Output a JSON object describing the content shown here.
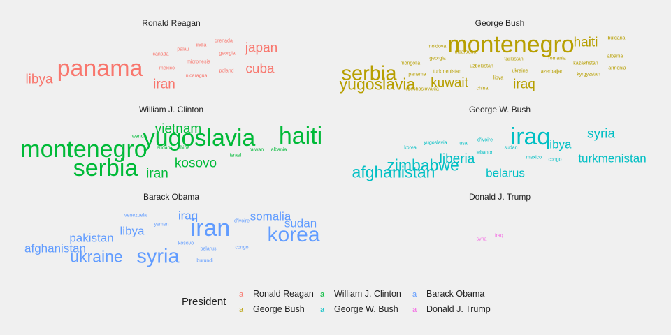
{
  "chart_data": {
    "type": "wordcloud",
    "legend": {
      "title": "President",
      "key_glyph": "a",
      "placement": "bottom",
      "entries": [
        {
          "name": "Ronald Reagan",
          "color": "#f8766d"
        },
        {
          "name": "George Bush",
          "color": "#b79f00"
        },
        {
          "name": "William J. Clinton",
          "color": "#00ba38"
        },
        {
          "name": "George W. Bush",
          "color": "#00bfc4"
        },
        {
          "name": "Barack Obama",
          "color": "#619cff"
        },
        {
          "name": "Donald J. Trump",
          "color": "#f564e3"
        }
      ]
    },
    "panels": [
      {
        "title": "Ronald Reagan",
        "color": "#f8766d",
        "words": [
          {
            "text": "panama",
            "weight": 10
          },
          {
            "text": "libya",
            "weight": 5
          },
          {
            "text": "japan",
            "weight": 5
          },
          {
            "text": "cuba",
            "weight": 5
          },
          {
            "text": "iran",
            "weight": 5
          },
          {
            "text": "grenada",
            "weight": 1
          },
          {
            "text": "india",
            "weight": 1
          },
          {
            "text": "palau",
            "weight": 1
          },
          {
            "text": "canada",
            "weight": 1
          },
          {
            "text": "georgia",
            "weight": 1
          },
          {
            "text": "micronesia",
            "weight": 1
          },
          {
            "text": "mexico",
            "weight": 1
          },
          {
            "text": "poland",
            "weight": 1
          },
          {
            "text": "nicaragua",
            "weight": 1
          }
        ]
      },
      {
        "title": "George Bush",
        "color": "#b79f00",
        "words": [
          {
            "text": "montenegro",
            "weight": 10
          },
          {
            "text": "serbia",
            "weight": 8
          },
          {
            "text": "yugoslavia",
            "weight": 6
          },
          {
            "text": "haiti",
            "weight": 5
          },
          {
            "text": "kuwait",
            "weight": 5
          },
          {
            "text": "iraq",
            "weight": 5
          },
          {
            "text": "bulgaria",
            "weight": 1
          },
          {
            "text": "moldova",
            "weight": 1
          },
          {
            "text": "nicaragua",
            "weight": 1
          },
          {
            "text": "georgia",
            "weight": 1
          },
          {
            "text": "tajikistan",
            "weight": 1
          },
          {
            "text": "romania",
            "weight": 1
          },
          {
            "text": "albania",
            "weight": 1
          },
          {
            "text": "mongolia",
            "weight": 1
          },
          {
            "text": "uzbekistan",
            "weight": 1
          },
          {
            "text": "kazakhstan",
            "weight": 1
          },
          {
            "text": "armenia",
            "weight": 1
          },
          {
            "text": "panama",
            "weight": 1
          },
          {
            "text": "turkmenistan",
            "weight": 1
          },
          {
            "text": "ukraine",
            "weight": 1
          },
          {
            "text": "azerbaijan",
            "weight": 1
          },
          {
            "text": "kyrgyzstan",
            "weight": 1
          },
          {
            "text": "libya",
            "weight": 1
          },
          {
            "text": "czechoslovakia",
            "weight": 1
          },
          {
            "text": "china",
            "weight": 1
          }
        ]
      },
      {
        "title": "William J. Clinton",
        "color": "#00ba38",
        "words": [
          {
            "text": "montenegro",
            "weight": 10
          },
          {
            "text": "serbia",
            "weight": 10
          },
          {
            "text": "yugoslavia",
            "weight": 10
          },
          {
            "text": "haiti",
            "weight": 10
          },
          {
            "text": "vietnam",
            "weight": 5
          },
          {
            "text": "kosovo",
            "weight": 5
          },
          {
            "text": "iran",
            "weight": 5
          },
          {
            "text": "rwanda",
            "weight": 1
          },
          {
            "text": "sudan",
            "weight": 1
          },
          {
            "text": "china",
            "weight": 1
          },
          {
            "text": "israel",
            "weight": 1
          },
          {
            "text": "taiwan",
            "weight": 1
          },
          {
            "text": "albania",
            "weight": 1
          }
        ]
      },
      {
        "title": "George W. Bush",
        "color": "#00bfc4",
        "words": [
          {
            "text": "iraq",
            "weight": 10
          },
          {
            "text": "afghanistan",
            "weight": 6
          },
          {
            "text": "zimbabwe",
            "weight": 6
          },
          {
            "text": "liberia",
            "weight": 5
          },
          {
            "text": "syria",
            "weight": 5
          },
          {
            "text": "libya",
            "weight": 4
          },
          {
            "text": "turkmenistan",
            "weight": 4
          },
          {
            "text": "belarus",
            "weight": 4
          },
          {
            "text": "yugoslavia",
            "weight": 1
          },
          {
            "text": "usa",
            "weight": 1
          },
          {
            "text": "d'ivoire",
            "weight": 1
          },
          {
            "text": "korea",
            "weight": 1
          },
          {
            "text": "sudan",
            "weight": 1
          },
          {
            "text": "lebanon",
            "weight": 1
          },
          {
            "text": "mexico",
            "weight": 1
          },
          {
            "text": "congo",
            "weight": 1
          }
        ]
      },
      {
        "title": "Barack Obama",
        "color": "#619cff",
        "words": [
          {
            "text": "iran",
            "weight": 10
          },
          {
            "text": "syria",
            "weight": 8
          },
          {
            "text": "korea",
            "weight": 7
          },
          {
            "text": "ukraine",
            "weight": 6
          },
          {
            "text": "afghanistan",
            "weight": 4
          },
          {
            "text": "pakistan",
            "weight": 4
          },
          {
            "text": "sudan",
            "weight": 4
          },
          {
            "text": "somalia",
            "weight": 4
          },
          {
            "text": "iraq",
            "weight": 4
          },
          {
            "text": "libya",
            "weight": 4
          },
          {
            "text": "venezuela",
            "weight": 1
          },
          {
            "text": "yemen",
            "weight": 1
          },
          {
            "text": "d'ivoire",
            "weight": 1
          },
          {
            "text": "kosovo",
            "weight": 1
          },
          {
            "text": "belarus",
            "weight": 1
          },
          {
            "text": "congo",
            "weight": 1
          },
          {
            "text": "burundi",
            "weight": 1
          }
        ]
      },
      {
        "title": "Donald J. Trump",
        "color": "#f564e3",
        "words": [
          {
            "text": "syria",
            "weight": 1
          },
          {
            "text": "iraq",
            "weight": 1
          }
        ]
      }
    ]
  }
}
